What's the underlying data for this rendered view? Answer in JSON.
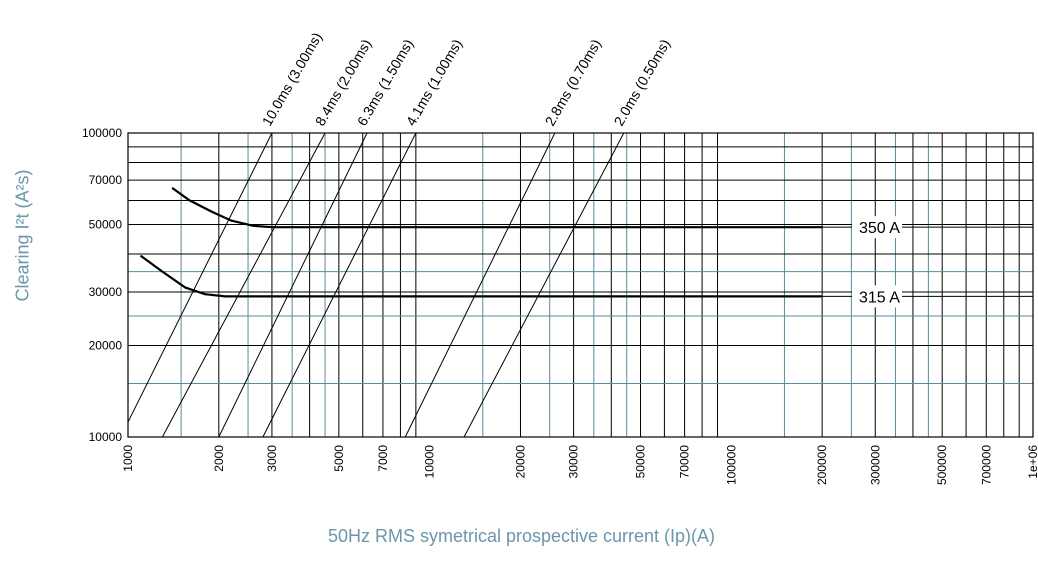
{
  "chart_data": {
    "type": "line",
    "title": "",
    "xlabel": "50Hz RMS symetrical prospective current (Ip)(A)",
    "ylabel": "Clearing I²t (A²s)",
    "x_scale": "log",
    "y_scale": "log",
    "xlim": [
      1000,
      1000000
    ],
    "ylim": [
      10000,
      100000
    ],
    "grid": true,
    "x_tick_labels": [
      "1000",
      "2000",
      "3000",
      "5000",
      "7000",
      "10000",
      "20000",
      "30000",
      "50000",
      "70000",
      "100000",
      "200000",
      "300000",
      "500000",
      "700000",
      "1e+06"
    ],
    "x_tick_values": [
      1000,
      2000,
      3000,
      5000,
      7000,
      10000,
      20000,
      30000,
      50000,
      70000,
      100000,
      200000,
      300000,
      500000,
      700000,
      1000000
    ],
    "y_tick_labels": [
      "10000",
      "20000",
      "30000",
      "50000",
      "70000",
      "100000"
    ],
    "y_tick_values": [
      10000,
      20000,
      30000,
      50000,
      70000,
      100000
    ],
    "series": [
      {
        "name": "350 A",
        "x": [
          1400,
          1600,
          1900,
          2200,
          2600,
          3000,
          4000,
          10000,
          50000,
          200000
        ],
        "y": [
          66000,
          60000,
          55000,
          51500,
          49500,
          49000,
          49000,
          49000,
          49000,
          49000
        ]
      },
      {
        "name": "315 A",
        "x": [
          1100,
          1300,
          1550,
          1800,
          2100,
          2500,
          3000,
          10000,
          50000,
          200000
        ],
        "y": [
          39500,
          35000,
          31000,
          29500,
          29000,
          29000,
          29000,
          29000,
          29000,
          29000
        ]
      }
    ],
    "reference_lines": [
      {
        "label": "10.0ms (3.00ms)",
        "x": [
          1000,
          3000
        ],
        "y": [
          11200,
          100000
        ]
      },
      {
        "label": "8.4ms (2.00ms)",
        "x": [
          1300,
          4500
        ],
        "y": [
          10000,
          100000
        ]
      },
      {
        "label": "6.3ms (1.50ms)",
        "x": [
          2000,
          6200
        ],
        "y": [
          10000,
          100000
        ]
      },
      {
        "label": "4.1ms (1.00ms)",
        "x": [
          2800,
          9000
        ],
        "y": [
          10000,
          100000
        ]
      },
      {
        "label": "2.8ms (0.70ms)",
        "x": [
          8300,
          26000
        ],
        "y": [
          10000,
          100000
        ]
      },
      {
        "label": "2.0ms (0.50ms)",
        "x": [
          13000,
          44000
        ],
        "y": [
          10000,
          100000
        ]
      }
    ]
  }
}
